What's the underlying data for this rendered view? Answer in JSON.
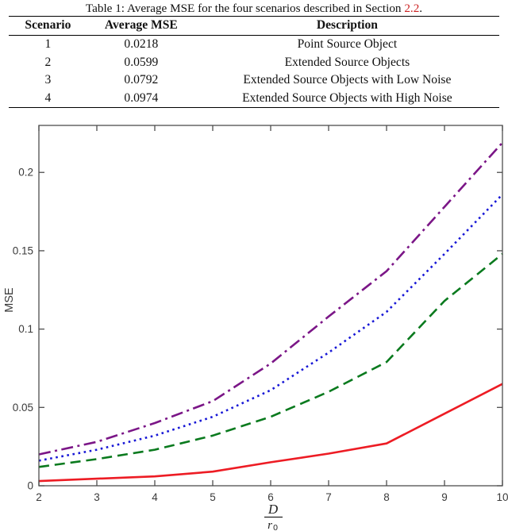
{
  "table": {
    "title_prefix": "Table 1: Average MSE for the four scenarios described in Section ",
    "title_link": "2.2",
    "title_suffix": ".",
    "headers": [
      "Scenario",
      "Average MSE",
      "Description"
    ],
    "rows": [
      [
        "1",
        "0.0218",
        "Point Source Object"
      ],
      [
        "2",
        "0.0599",
        "Extended Source Objects"
      ],
      [
        "3",
        "0.0792",
        "Extended Source Objects with Low Noise"
      ],
      [
        "4",
        "0.0974",
        "Extended Source Objects with High Noise"
      ]
    ]
  },
  "chart_data": {
    "type": "line",
    "title": "",
    "ylabel": "MSE",
    "xlabel_num": "D",
    "xlabel_den": "r",
    "xlabel_den_sub": "0",
    "xlim": [
      2,
      10
    ],
    "ylim": [
      0,
      0.23
    ],
    "x_ticks": [
      "2",
      "3",
      "4",
      "5",
      "6",
      "7",
      "8",
      "9",
      "10"
    ],
    "y_ticks": [
      "0",
      "0.05",
      "0.1",
      "0.15",
      "0.2"
    ],
    "grid": false,
    "legend": "none",
    "x": [
      2,
      3,
      4,
      5,
      6,
      7,
      8,
      9,
      10
    ],
    "series": [
      {
        "name": "red-solid-line",
        "color": "#ed1c24",
        "style": "solid",
        "values": [
          0.003,
          0.0045,
          0.006,
          0.009,
          0.015,
          0.0205,
          0.027,
          0.046,
          0.065
        ]
      },
      {
        "name": "green-dashed-line",
        "color": "#0a7a1e",
        "style": "dashed",
        "values": [
          0.012,
          0.017,
          0.023,
          0.032,
          0.044,
          0.06,
          0.079,
          0.118,
          0.148
        ]
      },
      {
        "name": "blue-dotted-line",
        "color": "#1717d6",
        "style": "dotted",
        "values": [
          0.016,
          0.023,
          0.032,
          0.044,
          0.061,
          0.085,
          0.111,
          0.148,
          0.186
        ]
      },
      {
        "name": "purple-dashdot-line",
        "color": "#7b1687",
        "style": "dashdot",
        "values": [
          0.02,
          0.028,
          0.04,
          0.054,
          0.078,
          0.108,
          0.137,
          0.178,
          0.219
        ]
      }
    ]
  },
  "colors": {
    "axis": "#4d4d4d",
    "tick_label": "#3a3a3a",
    "section_link": "#cc2222"
  }
}
